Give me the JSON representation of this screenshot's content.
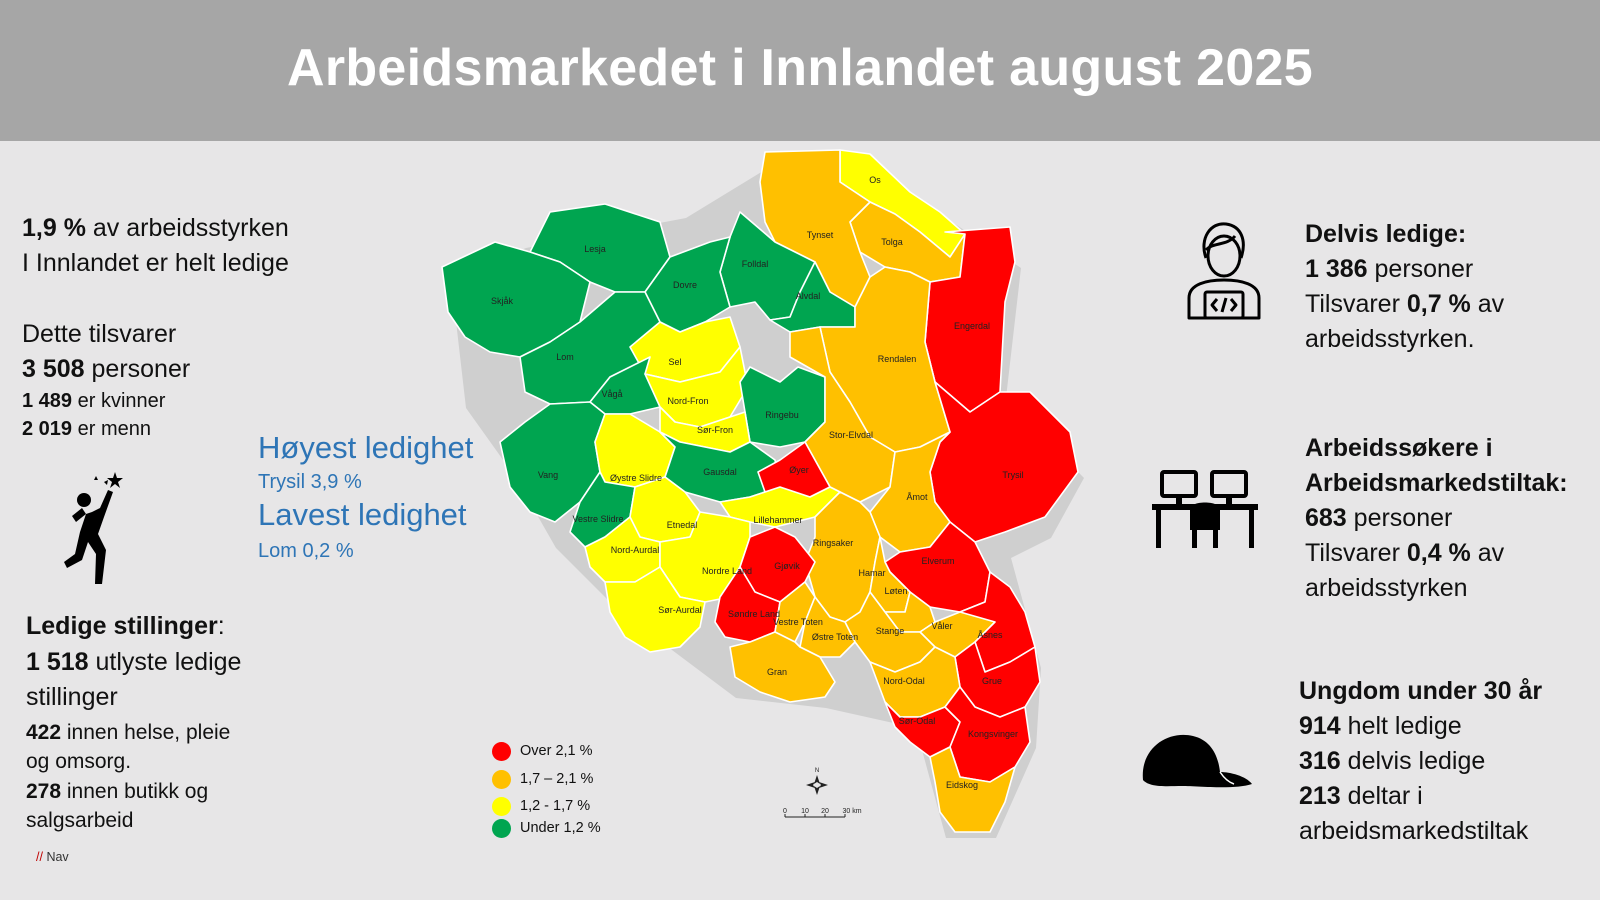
{
  "title": "Arbeidsmarkedet i Innlandet august 2025",
  "colors": {
    "header_bg": "#a6a6a6",
    "page_bg": "#e7e6e7",
    "red": "#ff0000",
    "orange": "#ffc000",
    "yellow": "#ffff00",
    "green": "#00a550",
    "blue_text": "#2e75b6"
  },
  "left": {
    "rate_value": "1,9 %",
    "rate_text": " av arbeidsstyrken",
    "rate_line2": "I Innlandet er helt ledige",
    "equiv_label": "Dette tilsvarer",
    "persons_value": "3 508",
    "persons_text": " personer",
    "women_value": "1 489",
    "women_text": " er kvinner",
    "men_value": "2 019",
    "men_text": " er menn",
    "highest_label": "Høyest ledighet",
    "highest_value": "Trysil 3,9  %",
    "lowest_label": "Lavest ledighet",
    "lowest_value": "Lom 0,2 %",
    "jobs_label": "Ledige stillinger",
    "jobs_colon": ":",
    "jobs_value": "1 518",
    "jobs_text": " utlyste ledige",
    "jobs_line2": "stillinger",
    "health_value": "422",
    "health_text": "  innen helse, pleie",
    "health_line2": " og omsorg.",
    "retail_value": "278",
    "retail_text": " innen butikk og",
    "retail_line2": "salgsarbeid",
    "source": "Nav",
    "source_mark": "//"
  },
  "right": {
    "partial_label": "Delvis ledige:",
    "partial_value": "1 386",
    "partial_text": " personer",
    "partial_equiv_pre": "Tilsvarer ",
    "partial_equiv_value": "0,7 %",
    "partial_equiv_post": " av",
    "partial_line4": " arbeidsstyrken.",
    "measures_label_1": "Arbeidssøkere i",
    "measures_label_2": "Arbeidsmarkedstiltak:",
    "measures_value": "683",
    "measures_text": " personer",
    "measures_equiv_pre": "Tilsvarer ",
    "measures_equiv_value": "0,4 %",
    "measures_equiv_post": " av",
    "measures_line5": "arbeidsstyrken",
    "youth_label": "Ungdom under 30 år",
    "youth_full_value": "914",
    "youth_full_text": " helt ledige",
    "youth_partial_value": "316",
    "youth_partial_text": " delvis ledige",
    "youth_measures_value": "213",
    "youth_measures_text": " deltar i",
    "youth_measures_line2": "arbeidsmarkedstiltak"
  },
  "legend": [
    {
      "label": "Over 2,1 %",
      "color": "#ff0000"
    },
    {
      "label": "1,7 – 2,1  %",
      "color": "#ffc000"
    },
    {
      "label": "1,2 - 1,7 %",
      "color": "#ffff00"
    },
    {
      "label": "Under 1,2 %",
      "color": "#00a550"
    }
  ],
  "scale": {
    "north": "N",
    "ticks": [
      "0",
      "10",
      "20",
      "30 km"
    ]
  },
  "municipalities": [
    {
      "name": "Os",
      "category": "yellow"
    },
    {
      "name": "Tolga",
      "category": "orange"
    },
    {
      "name": "Tynset",
      "category": "orange"
    },
    {
      "name": "Lesja",
      "category": "green"
    },
    {
      "name": "Folldal",
      "category": "green"
    },
    {
      "name": "Dovre",
      "category": "green"
    },
    {
      "name": "Alvdal",
      "category": "green"
    },
    {
      "name": "Skjåk",
      "category": "green"
    },
    {
      "name": "Engerdal",
      "category": "red"
    },
    {
      "name": "Lom",
      "category": "green"
    },
    {
      "name": "Sel",
      "category": "yellow"
    },
    {
      "name": "Rendalen",
      "category": "orange"
    },
    {
      "name": "Vågå",
      "category": "green"
    },
    {
      "name": "Nord-Fron",
      "category": "yellow"
    },
    {
      "name": "Ringebu",
      "category": "green"
    },
    {
      "name": "Sør-Fron",
      "category": "yellow"
    },
    {
      "name": "Stor-Elvdal",
      "category": "orange"
    },
    {
      "name": "Vang",
      "category": "green"
    },
    {
      "name": "Øystre Slidre",
      "category": "yellow"
    },
    {
      "name": "Gausdal",
      "category": "green"
    },
    {
      "name": "Øyer",
      "category": "red"
    },
    {
      "name": "Trysil",
      "category": "red"
    },
    {
      "name": "Åmot",
      "category": "orange"
    },
    {
      "name": "Vestre Slidre",
      "category": "green"
    },
    {
      "name": "Etnedal",
      "category": "yellow"
    },
    {
      "name": "Lillehammer",
      "category": "yellow"
    },
    {
      "name": "Nord-Aurdal",
      "category": "yellow"
    },
    {
      "name": "Ringsaker",
      "category": "orange"
    },
    {
      "name": "Elverum",
      "category": "red"
    },
    {
      "name": "Nordre Land",
      "category": "yellow"
    },
    {
      "name": "Gjøvik",
      "category": "red"
    },
    {
      "name": "Hamar",
      "category": "orange"
    },
    {
      "name": "Løten",
      "category": "orange"
    },
    {
      "name": "Sør-Aurdal",
      "category": "yellow"
    },
    {
      "name": "Søndre Land",
      "category": "red"
    },
    {
      "name": "Vestre Toten",
      "category": "orange"
    },
    {
      "name": "Våler",
      "category": "orange"
    },
    {
      "name": "Åsnes",
      "category": "red"
    },
    {
      "name": "Stange",
      "category": "orange"
    },
    {
      "name": "Østre Toten",
      "category": "orange"
    },
    {
      "name": "Gran",
      "category": "orange"
    },
    {
      "name": "Grue",
      "category": "red"
    },
    {
      "name": "Nord-Odal",
      "category": "orange"
    },
    {
      "name": "Sør-Odal",
      "category": "red"
    },
    {
      "name": "Kongsvinger",
      "category": "red"
    },
    {
      "name": "Eidskog",
      "category": "orange"
    }
  ]
}
